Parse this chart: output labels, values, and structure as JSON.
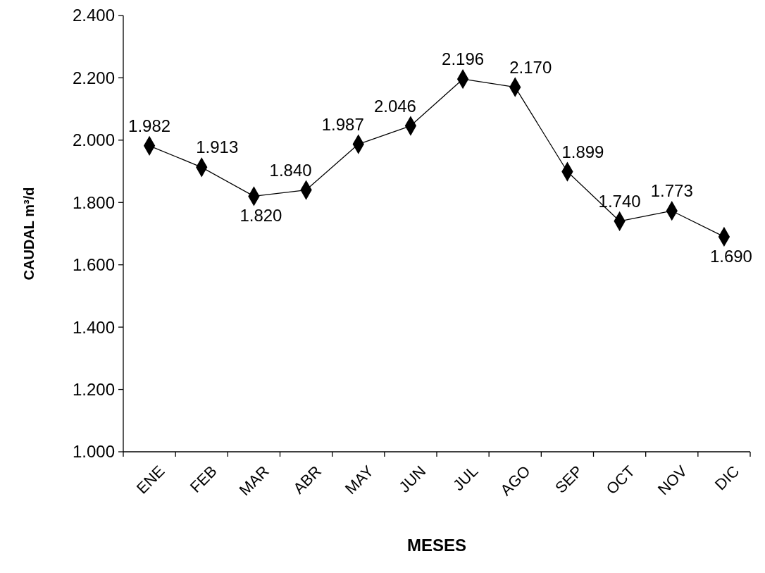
{
  "chart_data": {
    "type": "line",
    "xlabel": "MESES",
    "ylabel": "CAUDAL m³/d",
    "categories": [
      "ENE",
      "FEB",
      "MAR",
      "ABR",
      "MAY",
      "JUN",
      "JUL",
      "AGO",
      "SEP",
      "OCT",
      "NOV",
      "DIC"
    ],
    "series": [
      {
        "color": "#000000",
        "values": [
          1982,
          1913,
          1820,
          1840,
          1987,
          2046,
          2196,
          2170,
          1899,
          1740,
          1773,
          1690
        ],
        "value_labels": [
          "1.982",
          "1.913",
          "1.820",
          "1.840",
          "1.987",
          "2.046",
          "2.196",
          "2.170",
          "1.899",
          "1.740",
          "1.773",
          "1.690"
        ]
      }
    ],
    "ylim": [
      1000,
      2400
    ],
    "yticks": [
      {
        "value": 1000,
        "label": "1.000"
      },
      {
        "value": 1200,
        "label": "1.200"
      },
      {
        "value": 1400,
        "label": "1.400"
      },
      {
        "value": 1600,
        "label": "1.600"
      },
      {
        "value": 1800,
        "label": "1.800"
      },
      {
        "value": 2000,
        "label": "2.000"
      },
      {
        "value": 2200,
        "label": "2.200"
      },
      {
        "value": 2400,
        "label": "2.400"
      }
    ],
    "marker": "diamond",
    "line_style": "solid"
  }
}
